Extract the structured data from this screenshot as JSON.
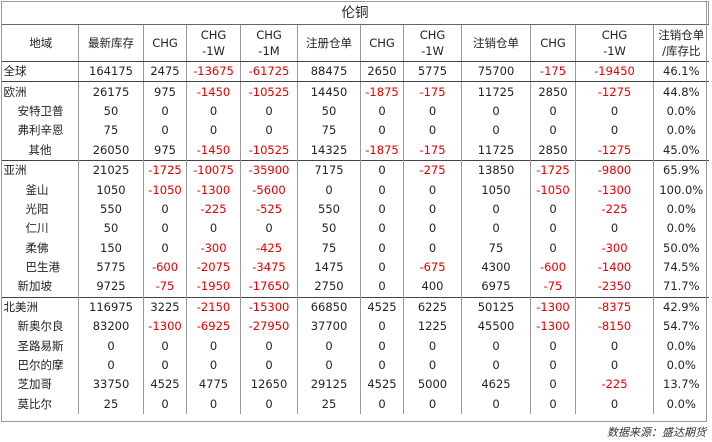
{
  "title": "伦铜",
  "headers": [
    {
      "line1": "地域",
      "line2": ""
    },
    {
      "line1": "最新库存",
      "line2": ""
    },
    {
      "line1": "CHG",
      "line2": ""
    },
    {
      "line1": "CHG",
      "line2": "-1W"
    },
    {
      "line1": "CHG",
      "line2": "-1M"
    },
    {
      "line1": "注册仓单",
      "line2": ""
    },
    {
      "line1": "CHG",
      "line2": ""
    },
    {
      "line1": "CHG",
      "line2": "-1W"
    },
    {
      "line1": "注销仓单",
      "line2": ""
    },
    {
      "line1": "CHG",
      "line2": ""
    },
    {
      "line1": "CHG",
      "line2": "-1W"
    },
    {
      "line1": "注销仓单",
      "line2": "/库存比"
    }
  ],
  "rows": [
    {
      "cells": [
        "全球",
        "164175",
        "2475",
        "-13675",
        "-61725",
        "88475",
        "2650",
        "5775",
        "75700",
        "-175",
        "-19450",
        "46.1%"
      ]
    },
    {
      "cells": [
        "欧洲",
        "26175",
        "975",
        "-1450",
        "-10525",
        "14450",
        "-1875",
        "-175",
        "11725",
        "2850",
        "-1275",
        "44.8%"
      ]
    },
    {
      "cells": [
        "安特卫普",
        "50",
        "0",
        "0",
        "0",
        "50",
        "0",
        "0",
        "0",
        "0",
        "0",
        "0.0%"
      ]
    },
    {
      "cells": [
        "弗利辛恩",
        "75",
        "0",
        "0",
        "0",
        "75",
        "0",
        "0",
        "0",
        "0",
        "0",
        "0.0%"
      ]
    },
    {
      "cells": [
        "其他",
        "26050",
        "975",
        "-1450",
        "-10525",
        "14325",
        "-1875",
        "-175",
        "11725",
        "2850",
        "-1275",
        "45.0%"
      ]
    },
    {
      "cells": [
        "亚洲",
        "21025",
        "-1725",
        "-10075",
        "-35900",
        "7175",
        "0",
        "-275",
        "13850",
        "-1725",
        "-9800",
        "65.9%"
      ]
    },
    {
      "cells": [
        "釜山",
        "1050",
        "-1050",
        "-1300",
        "-5600",
        "0",
        "0",
        "0",
        "1050",
        "-1050",
        "-1300",
        "100.0%"
      ]
    },
    {
      "cells": [
        "光阳",
        "550",
        "0",
        "-225",
        "-525",
        "550",
        "0",
        "0",
        "0",
        "0",
        "-225",
        "0.0%"
      ]
    },
    {
      "cells": [
        "仁川",
        "50",
        "0",
        "0",
        "0",
        "50",
        "0",
        "0",
        "0",
        "0",
        "0",
        "0.0%"
      ]
    },
    {
      "cells": [
        "柔佛",
        "150",
        "0",
        "-300",
        "-425",
        "75",
        "0",
        "0",
        "75",
        "0",
        "-300",
        "50.0%"
      ]
    },
    {
      "cells": [
        "巴生港",
        "5775",
        "-600",
        "-2075",
        "-3475",
        "1475",
        "0",
        "-675",
        "4300",
        "-600",
        "-1400",
        "74.5%"
      ]
    },
    {
      "cells": [
        "新加坡",
        "9725",
        "-75",
        "-1950",
        "-17650",
        "2750",
        "0",
        "400",
        "6975",
        "-75",
        "-2350",
        "71.7%"
      ]
    },
    {
      "cells": [
        "北美洲",
        "116975",
        "3225",
        "-2150",
        "-15300",
        "66850",
        "4525",
        "6225",
        "50125",
        "-1300",
        "-8375",
        "42.9%"
      ]
    },
    {
      "cells": [
        "新奥尔良",
        "83200",
        "-1300",
        "-6925",
        "-27950",
        "37700",
        "0",
        "1225",
        "45500",
        "-1300",
        "-8150",
        "54.7%"
      ]
    },
    {
      "cells": [
        "圣路易斯",
        "0",
        "0",
        "0",
        "0",
        "0",
        "0",
        "0",
        "0",
        "0",
        "0",
        "0.0%"
      ]
    },
    {
      "cells": [
        "巴尔的摩",
        "0",
        "0",
        "0",
        "0",
        "0",
        "0",
        "0",
        "0",
        "0",
        "0",
        "0.0%"
      ]
    },
    {
      "cells": [
        "芝加哥",
        "33750",
        "4525",
        "4775",
        "12650",
        "29125",
        "4525",
        "5000",
        "4625",
        "0",
        "-225",
        "13.7%"
      ]
    },
    {
      "cells": [
        "莫比尔",
        "25",
        "0",
        "0",
        "0",
        "25",
        "0",
        "0",
        "0",
        "0",
        "0",
        "0.0%"
      ]
    }
  ],
  "source": "数据来源：盛达期货",
  "colors": {
    "negative": "#e00000",
    "text": "#222222",
    "border": "#9a9a9a"
  }
}
